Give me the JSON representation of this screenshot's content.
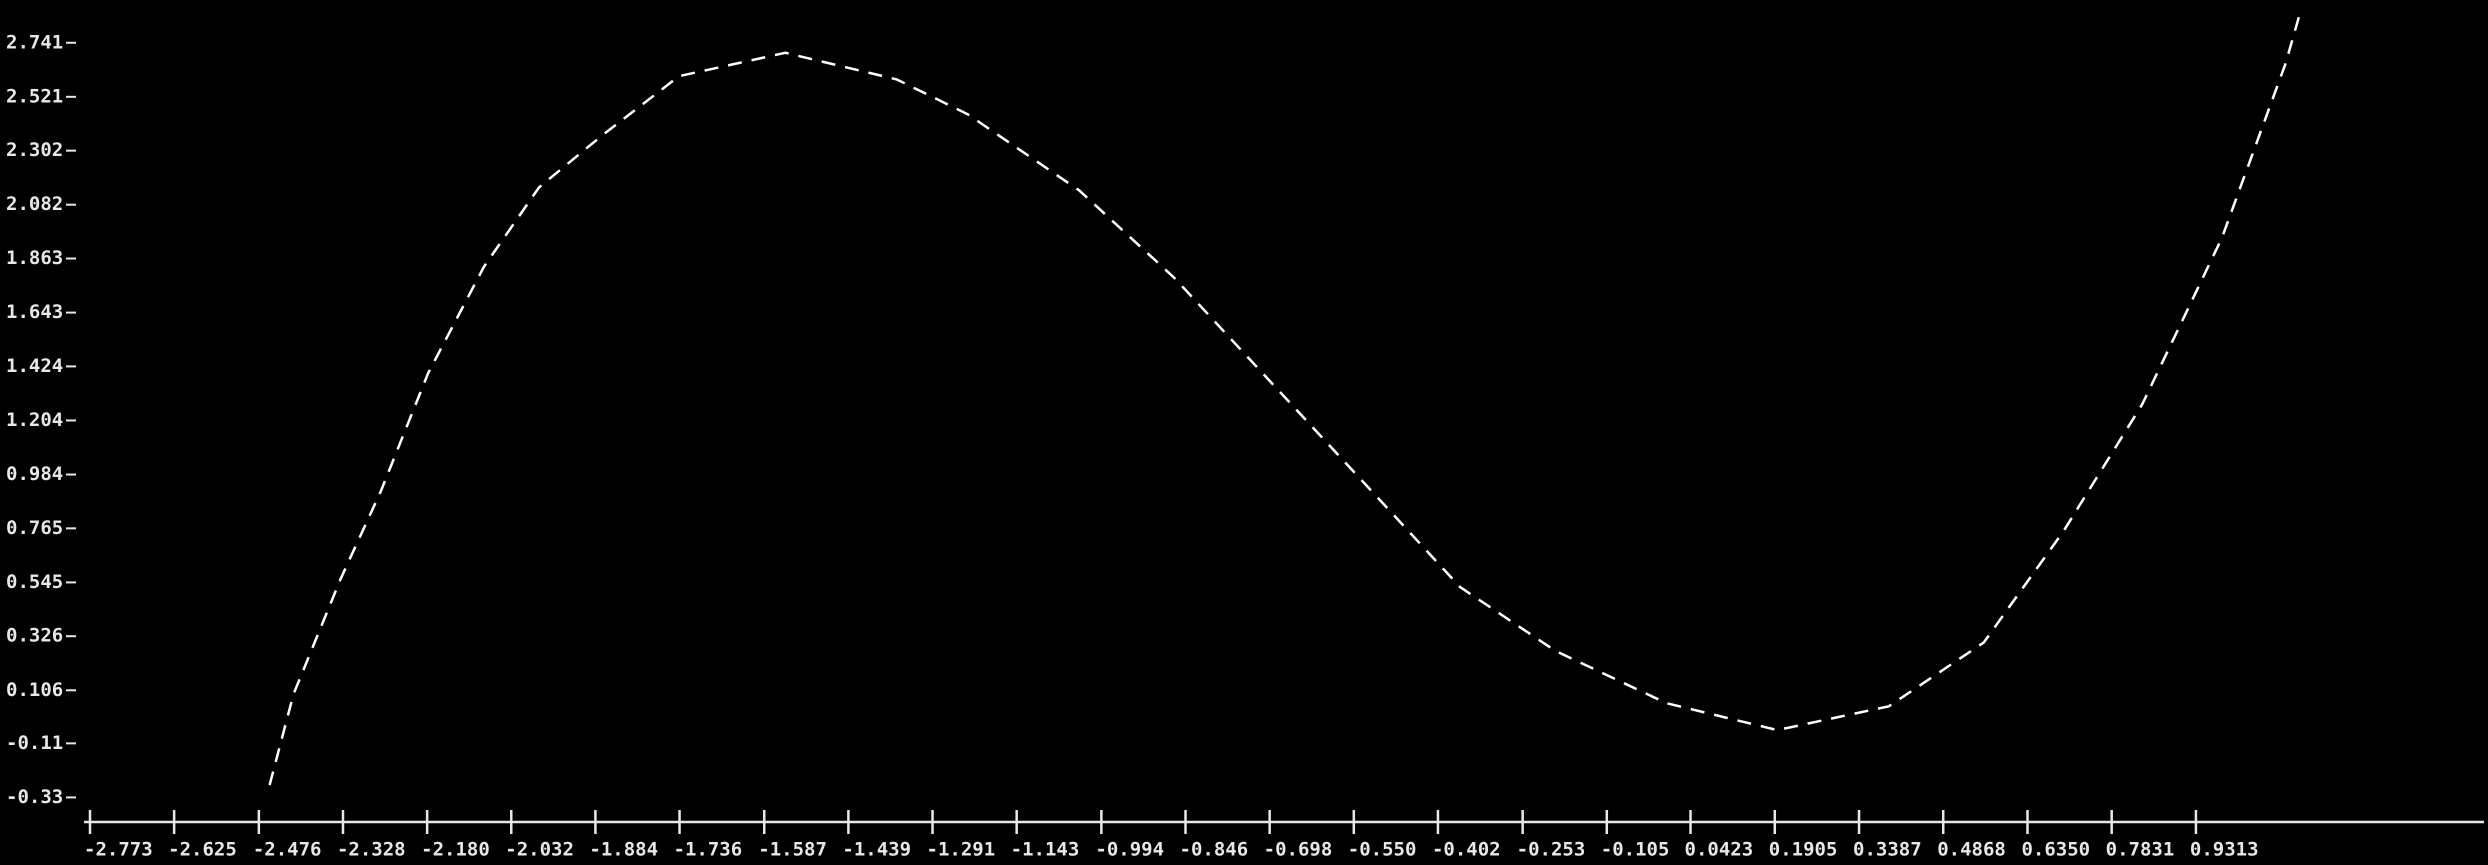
{
  "chart_data": {
    "type": "line",
    "x": [
      -2.457,
      -2.415,
      -2.332,
      -2.262,
      -2.178,
      -2.08,
      -1.983,
      -1.871,
      -1.737,
      -1.55,
      -1.354,
      -1.229,
      -1.033,
      -0.866,
      -0.698,
      -0.53,
      -0.363,
      -0.196,
      -0.0005,
      0.195,
      0.391,
      0.558,
      0.698,
      0.837,
      0.977,
      1.089,
      1.117
    ],
    "series": [
      {
        "color": "#ffffff",
        "values": [
          -0.28,
          0.09,
          0.56,
          0.913,
          1.398,
          1.83,
          2.153,
          2.366,
          2.605,
          2.7,
          2.592,
          2.45,
          2.14,
          1.785,
          1.365,
          0.945,
          0.526,
          0.267,
          0.054,
          -0.056,
          0.041,
          0.3,
          0.752,
          1.27,
          1.947,
          2.657,
          2.883
        ]
      }
    ],
    "xlim": [
      -2.773,
      1.438
    ],
    "ylim": [
      -0.43,
      2.915
    ],
    "xticks": [
      -2.773,
      -2.625,
      -2.476,
      -2.328,
      {
        "value": -2.18,
        "label": "-2.180"
      },
      -2.032,
      -1.884,
      -1.736,
      -1.587,
      -1.439,
      -1.291,
      -1.143,
      -0.994,
      -0.846,
      -0.698,
      {
        "value": -0.55,
        "label": "-0.550"
      },
      -0.402,
      -0.253,
      -0.105,
      0.0423,
      0.1905,
      0.3387,
      0.4868,
      {
        "value": 0.635,
        "label": "0.6350"
      },
      0.7831,
      0.9313
    ],
    "yticks": [
      -0.33,
      -0.11,
      0.106,
      0.326,
      0.545,
      0.765,
      0.984,
      1.204,
      1.424,
      1.643,
      1.863,
      2.082,
      2.302,
      2.521,
      2.741
    ]
  }
}
